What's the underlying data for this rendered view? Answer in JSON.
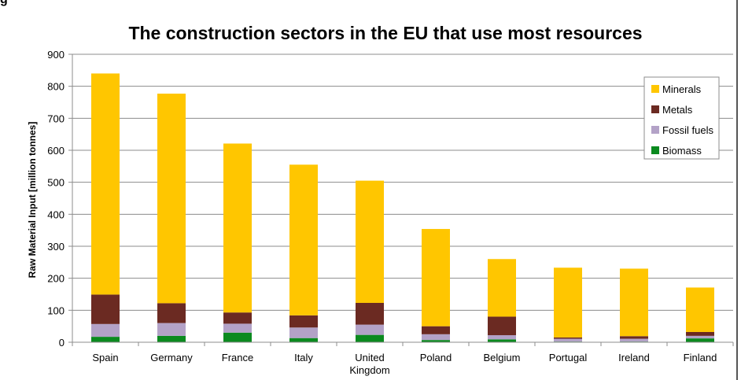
{
  "figure": {
    "cut_label": "g"
  },
  "chart_data": {
    "type": "bar",
    "stacked": true,
    "title": "The construction sectors in the EU that use most resources",
    "ylabel": "Raw Material Input [million tonnes]",
    "xlabel": "",
    "ylim": [
      0,
      900
    ],
    "yticks": [
      0,
      100,
      200,
      300,
      400,
      500,
      600,
      700,
      800,
      900
    ],
    "grid": true,
    "legend_position": "top-right",
    "categories": [
      "Spain",
      "Germany",
      "France",
      "Italy",
      "United Kingdom",
      "Poland",
      "Belgium",
      "Portugal",
      "Ireland",
      "Finland"
    ],
    "category_lines": [
      [
        "Spain"
      ],
      [
        "Germany"
      ],
      [
        "France"
      ],
      [
        "Italy"
      ],
      [
        "United",
        "Kingdom"
      ],
      [
        "Poland"
      ],
      [
        "Belgium"
      ],
      [
        "Portugal"
      ],
      [
        "Ireland"
      ],
      [
        "Finland"
      ]
    ],
    "series": [
      {
        "name": "Biomass",
        "color": "#0b8a1f",
        "values": [
          17,
          20,
          30,
          13,
          23,
          7,
          9,
          2,
          2,
          12
        ]
      },
      {
        "name": "Fossil fuels",
        "color": "#b3a2c7",
        "values": [
          40,
          40,
          28,
          33,
          32,
          18,
          13,
          9,
          9,
          8
        ]
      },
      {
        "name": "Metals",
        "color": "#6b2a22",
        "values": [
          92,
          62,
          35,
          38,
          68,
          25,
          58,
          4,
          8,
          12
        ]
      },
      {
        "name": "Minerals",
        "color": "#ffc600",
        "values": [
          691,
          655,
          528,
          471,
          382,
          304,
          180,
          218,
          211,
          139
        ]
      }
    ],
    "legend_order": [
      "Minerals",
      "Metals",
      "Fossil fuels",
      "Biomass"
    ]
  }
}
